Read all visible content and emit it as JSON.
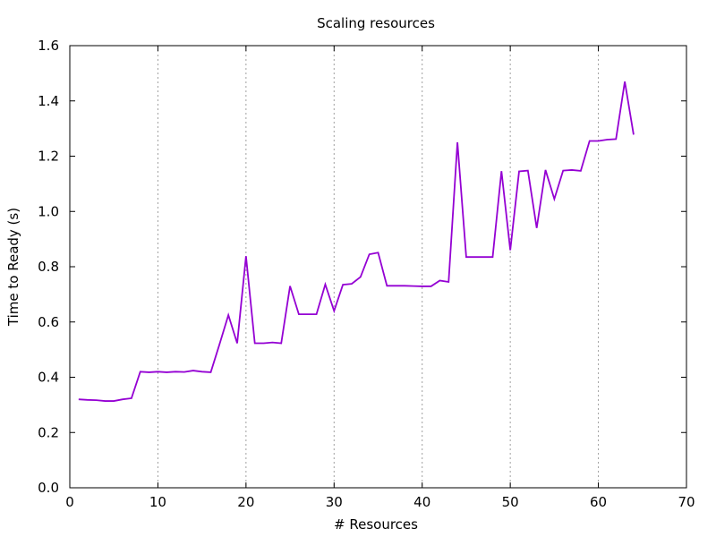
{
  "chart_data": {
    "type": "line",
    "title": "Scaling resources",
    "xlabel": "# Resources",
    "ylabel": "Time to Ready (s)",
    "xlim": [
      0,
      70
    ],
    "ylim": [
      0.0,
      1.6
    ],
    "x_ticks": [
      0,
      10,
      20,
      30,
      40,
      50,
      60,
      70
    ],
    "x_tick_labels": [
      "0",
      "10",
      "20",
      "30",
      "40",
      "50",
      "60",
      "70"
    ],
    "y_ticks": [
      0.0,
      0.2,
      0.4,
      0.6,
      0.8,
      1.0,
      1.2,
      1.4,
      1.6
    ],
    "y_tick_labels": [
      "0.0",
      "0.2",
      "0.4",
      "0.6",
      "0.8",
      "1.0",
      "1.2",
      "1.4",
      "1.6"
    ],
    "grid": {
      "x": true,
      "y": false
    },
    "legend": "none",
    "series": [
      {
        "color": "#9400d3",
        "x": [
          1,
          2,
          3,
          4,
          5,
          6,
          7,
          8,
          9,
          10,
          11,
          12,
          13,
          14,
          15,
          16,
          17,
          18,
          19,
          20,
          21,
          22,
          23,
          24,
          25,
          26,
          27,
          28,
          29,
          30,
          31,
          32,
          33,
          34,
          35,
          36,
          37,
          38,
          39,
          40,
          41,
          42,
          43,
          44,
          45,
          46,
          47,
          48,
          49,
          50,
          51,
          52,
          53,
          54,
          55,
          56,
          57,
          58,
          59,
          60,
          61,
          62,
          63,
          64
        ],
        "y": [
          0.32,
          0.318,
          0.317,
          0.314,
          0.314,
          0.32,
          0.324,
          0.42,
          0.418,
          0.42,
          0.418,
          0.42,
          0.419,
          0.424,
          0.42,
          0.418,
          0.52,
          0.625,
          0.523,
          0.838,
          0.523,
          0.523,
          0.526,
          0.523,
          0.73,
          0.628,
          0.628,
          0.628,
          0.736,
          0.64,
          0.735,
          0.738,
          0.763,
          0.845,
          0.851,
          0.731,
          0.731,
          0.731,
          0.73,
          0.729,
          0.729,
          0.75,
          0.745,
          1.25,
          0.835,
          0.835,
          0.835,
          0.835,
          1.146,
          0.86,
          1.145,
          1.148,
          0.94,
          1.15,
          1.045,
          1.148,
          1.15,
          1.147,
          1.255,
          1.255,
          1.26,
          1.262,
          1.47,
          1.278
        ]
      }
    ]
  }
}
